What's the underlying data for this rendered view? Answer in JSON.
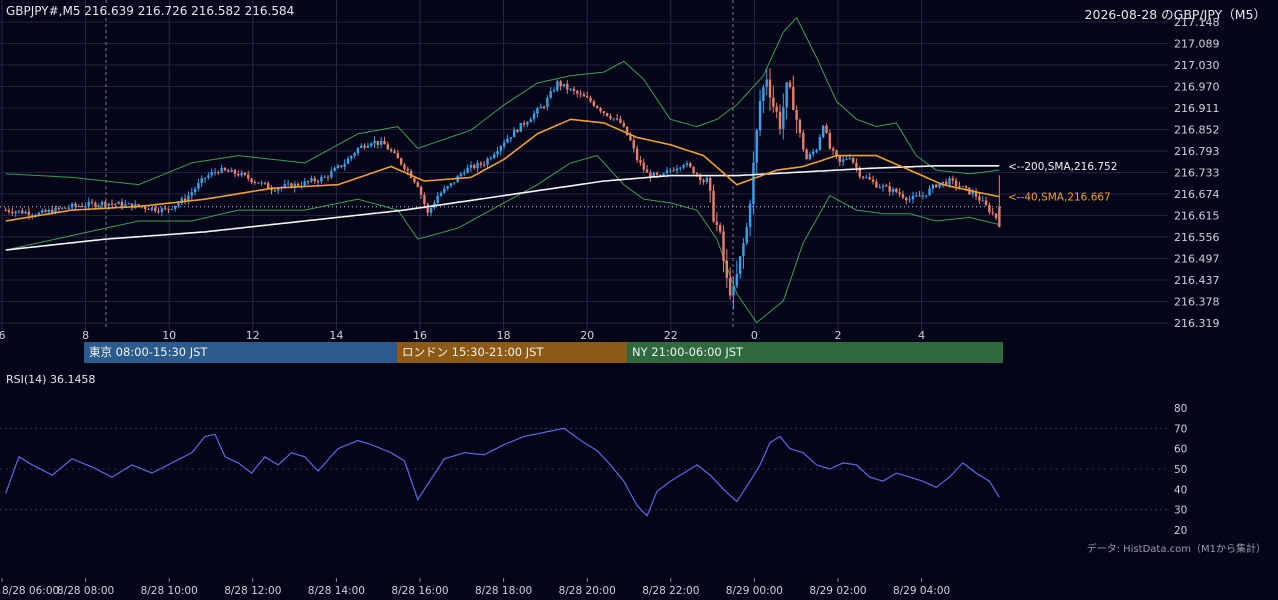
{
  "header": {
    "symbol_info": "GBPJPY#,M5 216.639 216.726 216.582 216.584",
    "title": "2026-08-28 のGBP/JPY（M5）"
  },
  "sessions": [
    {
      "label": "東京 08:00-15:30 JST",
      "color": "#2b5a8c"
    },
    {
      "label": "ロンドン 15:30-21:00 JST",
      "color": "#8c5a14"
    },
    {
      "label": "NY 21:00-06:00 JST",
      "color": "#2e6a3e"
    }
  ],
  "rsi": {
    "label": "RSI(14) 36.1458",
    "ticks": [
      "80",
      "70",
      "60",
      "50",
      "40",
      "30",
      "20"
    ]
  },
  "source_note": "データ: HistData.com（M1から集計）",
  "colors": {
    "background": "#05051a",
    "up_candle": "#3aa0e8",
    "down_candle": "#e8806a",
    "sma40": "#f0a030",
    "sma200": "#f4f4f4",
    "bollinger": "#3aa050",
    "rsi_line": "#5a6ae8"
  },
  "chart_data": {
    "type": "candlestick",
    "title": "2026-08-28 のGBP/JPY（M5）",
    "y_ticks": [
      "217.148",
      "217.089",
      "217.030",
      "216.970",
      "216.911",
      "216.852",
      "216.793",
      "216.733",
      "216.674",
      "216.615",
      "216.556",
      "216.497",
      "216.437",
      "216.378",
      "216.319"
    ],
    "ylim": [
      216.319,
      217.148
    ],
    "x_ticks_top": [
      "6",
      "8",
      "10",
      "12",
      "14",
      "16",
      "18",
      "20",
      "22",
      "0",
      "2",
      "4"
    ],
    "x_ticks_bottom": [
      "8/28 06:00",
      "8/28 08:00",
      "8/28 10:00",
      "8/28 12:00",
      "8/28 14:00",
      "8/28 16:00",
      "8/28 18:00",
      "8/28 20:00",
      "8/28 22:00",
      "8/29 00:00",
      "8/29 02:00",
      "8/29 04:00"
    ],
    "last_ohlc": {
      "open": 216.639,
      "high": 216.726,
      "low": 216.582,
      "close": 216.584
    },
    "sma200_label": "<--200,SMA,216.752",
    "sma40_label": "<--40,SMA,216.667",
    "price_path": [
      [
        0,
        216.63
      ],
      [
        10,
        216.62
      ],
      [
        20,
        216.64
      ],
      [
        30,
        216.65
      ],
      [
        40,
        216.64
      ],
      [
        48,
        216.63
      ],
      [
        54,
        216.66
      ],
      [
        60,
        216.72
      ],
      [
        64,
        216.74
      ],
      [
        70,
        216.73
      ],
      [
        80,
        216.69
      ],
      [
        88,
        216.7
      ],
      [
        96,
        216.72
      ],
      [
        102,
        216.76
      ],
      [
        106,
        216.8
      ],
      [
        110,
        216.82
      ],
      [
        114,
        216.81
      ],
      [
        120,
        216.75
      ],
      [
        124,
        216.7
      ],
      [
        127,
        216.62
      ],
      [
        130,
        216.67
      ],
      [
        134,
        216.7
      ],
      [
        138,
        216.74
      ],
      [
        144,
        216.76
      ],
      [
        150,
        216.82
      ],
      [
        156,
        216.87
      ],
      [
        162,
        216.92
      ],
      [
        166,
        216.98
      ],
      [
        170,
        216.96
      ],
      [
        176,
        216.93
      ],
      [
        180,
        216.9
      ],
      [
        185,
        216.87
      ],
      [
        188,
        216.82
      ],
      [
        190,
        216.77
      ],
      [
        193,
        216.73
      ],
      [
        197,
        216.72
      ],
      [
        200,
        216.74
      ],
      [
        204,
        216.76
      ],
      [
        208,
        216.73
      ],
      [
        211,
        216.7
      ],
      [
        213,
        216.62
      ],
      [
        215,
        216.55
      ],
      [
        217,
        216.43
      ],
      [
        219,
        216.4
      ],
      [
        221,
        216.49
      ],
      [
        223,
        216.58
      ],
      [
        225,
        216.75
      ],
      [
        227,
        216.93
      ],
      [
        229,
        217.0
      ],
      [
        231,
        216.92
      ],
      [
        233,
        216.87
      ],
      [
        235,
        216.96
      ],
      [
        237,
        216.93
      ],
      [
        239,
        216.83
      ],
      [
        241,
        216.77
      ],
      [
        244,
        216.8
      ],
      [
        246,
        216.87
      ],
      [
        248,
        216.8
      ],
      [
        251,
        216.76
      ],
      [
        254,
        216.78
      ],
      [
        257,
        216.73
      ],
      [
        262,
        216.7
      ],
      [
        268,
        216.68
      ],
      [
        272,
        216.66
      ],
      [
        276,
        216.67
      ],
      [
        280,
        216.7
      ],
      [
        284,
        216.71
      ],
      [
        288,
        216.69
      ],
      [
        292,
        216.67
      ],
      [
        295,
        216.64
      ],
      [
        297,
        216.62
      ],
      [
        299,
        216.6
      ]
    ],
    "bollinger_upper_path": [
      [
        0,
        216.73
      ],
      [
        20,
        216.72
      ],
      [
        40,
        216.7
      ],
      [
        56,
        216.76
      ],
      [
        70,
        216.78
      ],
      [
        90,
        216.76
      ],
      [
        106,
        216.84
      ],
      [
        118,
        216.86
      ],
      [
        124,
        216.8
      ],
      [
        140,
        216.85
      ],
      [
        150,
        216.92
      ],
      [
        160,
        216.98
      ],
      [
        170,
        217.0
      ],
      [
        180,
        217.01
      ],
      [
        186,
        217.04
      ],
      [
        192,
        216.99
      ],
      [
        200,
        216.88
      ],
      [
        208,
        216.86
      ],
      [
        214,
        216.88
      ],
      [
        220,
        216.92
      ],
      [
        228,
        217.0
      ],
      [
        234,
        217.12
      ],
      [
        238,
        217.16
      ],
      [
        244,
        217.05
      ],
      [
        250,
        216.93
      ],
      [
        256,
        216.88
      ],
      [
        262,
        216.86
      ],
      [
        268,
        216.87
      ],
      [
        274,
        216.78
      ],
      [
        280,
        216.74
      ],
      [
        290,
        216.73
      ],
      [
        299,
        216.74
      ]
    ],
    "bollinger_lower_path": [
      [
        0,
        216.52
      ],
      [
        20,
        216.56
      ],
      [
        40,
        216.6
      ],
      [
        56,
        216.6
      ],
      [
        70,
        216.63
      ],
      [
        90,
        216.63
      ],
      [
        106,
        216.66
      ],
      [
        118,
        216.63
      ],
      [
        124,
        216.55
      ],
      [
        136,
        216.58
      ],
      [
        150,
        216.65
      ],
      [
        160,
        216.7
      ],
      [
        170,
        216.76
      ],
      [
        178,
        216.78
      ],
      [
        186,
        216.7
      ],
      [
        192,
        216.66
      ],
      [
        200,
        216.65
      ],
      [
        208,
        216.63
      ],
      [
        214,
        216.55
      ],
      [
        220,
        216.4
      ],
      [
        226,
        216.32
      ],
      [
        234,
        216.38
      ],
      [
        240,
        216.54
      ],
      [
        248,
        216.67
      ],
      [
        256,
        216.63
      ],
      [
        264,
        216.62
      ],
      [
        272,
        216.62
      ],
      [
        280,
        216.6
      ],
      [
        290,
        216.61
      ],
      [
        299,
        216.59
      ]
    ],
    "sma40_path": [
      [
        0,
        216.6
      ],
      [
        20,
        216.63
      ],
      [
        40,
        216.64
      ],
      [
        60,
        216.66
      ],
      [
        80,
        216.69
      ],
      [
        100,
        216.7
      ],
      [
        116,
        216.75
      ],
      [
        126,
        216.71
      ],
      [
        140,
        216.72
      ],
      [
        150,
        216.77
      ],
      [
        160,
        216.84
      ],
      [
        170,
        216.88
      ],
      [
        180,
        216.87
      ],
      [
        190,
        216.83
      ],
      [
        200,
        216.81
      ],
      [
        210,
        216.78
      ],
      [
        220,
        216.7
      ],
      [
        226,
        216.72
      ],
      [
        232,
        216.74
      ],
      [
        240,
        216.75
      ],
      [
        250,
        216.78
      ],
      [
        262,
        216.78
      ],
      [
        272,
        216.74
      ],
      [
        282,
        216.7
      ],
      [
        292,
        216.68
      ],
      [
        299,
        216.667
      ]
    ],
    "sma200_path": [
      [
        0,
        216.52
      ],
      [
        30,
        216.55
      ],
      [
        60,
        216.57
      ],
      [
        90,
        216.6
      ],
      [
        120,
        216.63
      ],
      [
        150,
        216.67
      ],
      [
        180,
        216.71
      ],
      [
        200,
        216.725
      ],
      [
        220,
        216.725
      ],
      [
        240,
        216.735
      ],
      [
        260,
        216.745
      ],
      [
        280,
        216.752
      ],
      [
        299,
        216.752
      ]
    ],
    "rsi_path": [
      [
        0,
        38
      ],
      [
        4,
        56
      ],
      [
        8,
        52
      ],
      [
        14,
        47
      ],
      [
        20,
        55
      ],
      [
        26,
        51
      ],
      [
        32,
        46
      ],
      [
        38,
        52
      ],
      [
        44,
        48
      ],
      [
        50,
        53
      ],
      [
        56,
        58
      ],
      [
        60,
        66
      ],
      [
        63,
        67
      ],
      [
        66,
        56
      ],
      [
        70,
        53
      ],
      [
        74,
        48
      ],
      [
        78,
        56
      ],
      [
        82,
        52
      ],
      [
        86,
        58
      ],
      [
        90,
        56
      ],
      [
        94,
        49
      ],
      [
        100,
        60
      ],
      [
        106,
        64
      ],
      [
        110,
        62
      ],
      [
        116,
        58
      ],
      [
        120,
        54
      ],
      [
        124,
        35
      ],
      [
        128,
        45
      ],
      [
        132,
        55
      ],
      [
        138,
        58
      ],
      [
        144,
        57
      ],
      [
        150,
        62
      ],
      [
        156,
        66
      ],
      [
        162,
        68
      ],
      [
        168,
        70
      ],
      [
        174,
        63
      ],
      [
        178,
        59
      ],
      [
        182,
        52
      ],
      [
        186,
        44
      ],
      [
        190,
        32
      ],
      [
        193,
        27
      ],
      [
        196,
        39
      ],
      [
        200,
        44
      ],
      [
        204,
        48
      ],
      [
        208,
        52
      ],
      [
        212,
        47
      ],
      [
        216,
        40
      ],
      [
        220,
        34
      ],
      [
        224,
        44
      ],
      [
        227,
        52
      ],
      [
        230,
        63
      ],
      [
        233,
        66
      ],
      [
        236,
        60
      ],
      [
        240,
        58
      ],
      [
        244,
        52
      ],
      [
        248,
        50
      ],
      [
        252,
        53
      ],
      [
        256,
        52
      ],
      [
        260,
        46
      ],
      [
        264,
        44
      ],
      [
        268,
        48
      ],
      [
        272,
        46
      ],
      [
        276,
        44
      ],
      [
        280,
        41
      ],
      [
        284,
        46
      ],
      [
        288,
        53
      ],
      [
        292,
        48
      ],
      [
        296,
        44
      ],
      [
        299,
        36.1
      ]
    ]
  }
}
